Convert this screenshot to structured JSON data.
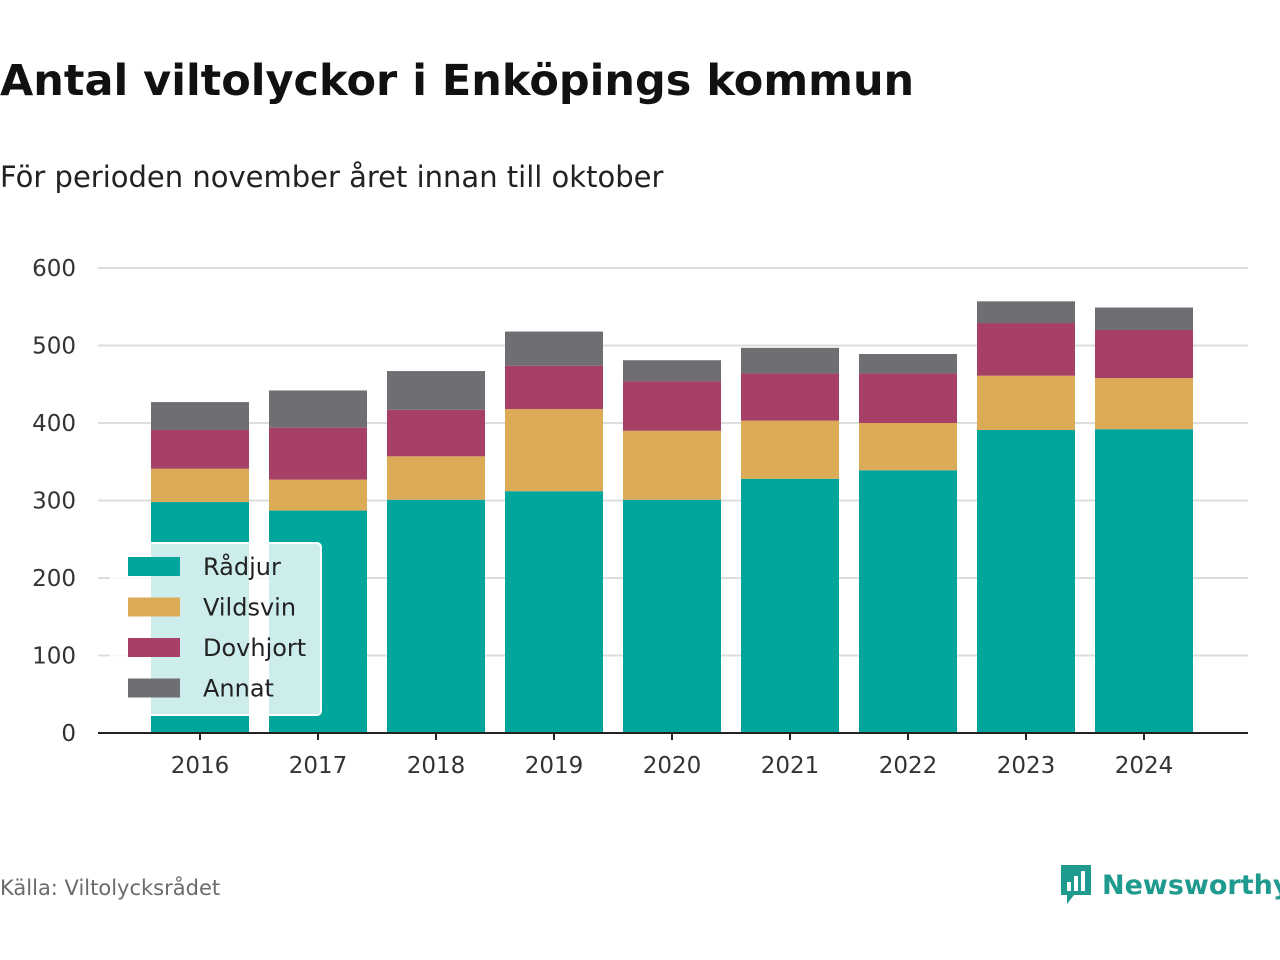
{
  "header": {
    "title": "Antal viltolyckor i Enköpings kommun",
    "subtitle": "För perioden november året innan till oktober"
  },
  "footer": {
    "source": "Källa: Viltolycksrådet",
    "brand": "Newsworthy"
  },
  "colors": {
    "Rådjur": "#00a59b",
    "Vildsvin": "#dcab58",
    "Dovhjort": "#a64066",
    "Annat": "#6f6e73",
    "brand": "#1f9a8f"
  },
  "chart_data": {
    "type": "bar",
    "stacked": true,
    "categories": [
      "2016",
      "2017",
      "2018",
      "2019",
      "2020",
      "2021",
      "2022",
      "2023",
      "2024"
    ],
    "series": [
      {
        "name": "Rådjur",
        "values": [
          298,
          287,
          301,
          312,
          301,
          328,
          339,
          391,
          392
        ]
      },
      {
        "name": "Vildsvin",
        "values": [
          43,
          40,
          56,
          106,
          89,
          75,
          61,
          70,
          66
        ]
      },
      {
        "name": "Dovhjort",
        "values": [
          50,
          67,
          60,
          56,
          64,
          61,
          64,
          68,
          62
        ]
      },
      {
        "name": "Annat",
        "values": [
          36,
          48,
          50,
          44,
          27,
          33,
          25,
          28,
          29
        ]
      }
    ],
    "title": "Antal viltolyckor i Enköpings kommun",
    "subtitle": "För perioden november året innan till oktober",
    "xlabel": "",
    "ylabel": "",
    "ylim": [
      0,
      600
    ],
    "yticks": [
      0,
      100,
      200,
      300,
      400,
      500,
      600
    ],
    "grid": true,
    "legend_position": "bottom-left"
  }
}
